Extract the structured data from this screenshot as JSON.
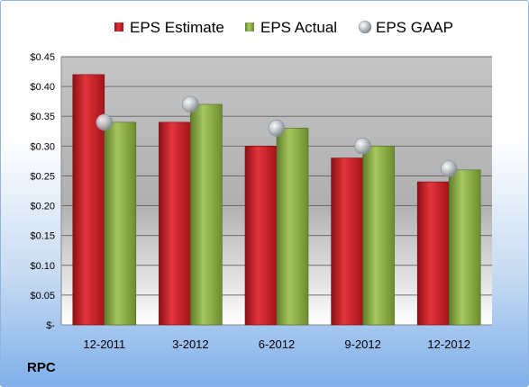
{
  "ticker": "RPC",
  "colors": {
    "estimate": "#cc1f27",
    "actual": "#8fb34a",
    "gaap": "#b8bcc2"
  },
  "chart_data": {
    "type": "bar",
    "categories": [
      "12-2011",
      "3-2012",
      "6-2012",
      "9-2012",
      "12-2012"
    ],
    "series": [
      {
        "name": "EPS Estimate",
        "kind": "bar",
        "values": [
          0.42,
          0.34,
          0.3,
          0.28,
          0.24
        ]
      },
      {
        "name": "EPS Actual",
        "kind": "bar",
        "values": [
          0.34,
          0.37,
          0.33,
          0.3,
          0.26
        ]
      },
      {
        "name": "EPS GAAP",
        "kind": "marker",
        "values": [
          0.34,
          0.37,
          0.33,
          0.3,
          0.262
        ]
      }
    ],
    "yticks": [
      "$-",
      "$0.05",
      "$0.10",
      "$0.15",
      "$0.20",
      "$0.25",
      "$0.30",
      "$0.35",
      "$0.40",
      "$0.45"
    ],
    "ylim": [
      0,
      0.45
    ],
    "grid": true,
    "legend": "top"
  }
}
